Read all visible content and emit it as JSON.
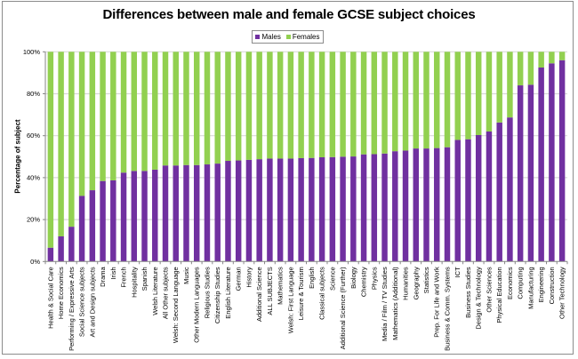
{
  "chart_data": {
    "type": "bar",
    "stacked": true,
    "percent_stacked": true,
    "title": "Differences between male and female GCSE subject choices",
    "xlabel": "",
    "ylabel": "Percentage of subject",
    "ylim": [
      0,
      100
    ],
    "yticks": [
      "0%",
      "20%",
      "40%",
      "60%",
      "80%",
      "100%"
    ],
    "ytick_values": [
      0,
      20,
      40,
      60,
      80,
      100
    ],
    "grid": true,
    "legend_position": "top-center",
    "legend": [
      {
        "name": "Males",
        "color": "#7030a0"
      },
      {
        "name": "Females",
        "color": "#92d050"
      }
    ],
    "categories": [
      "Health & Social Care",
      "Home Economics",
      "Performing / Expressive Arts",
      "Social Science subjects",
      "Art and Design subjects",
      "Drama",
      "Irish",
      "French",
      "Hospitality",
      "Spanish",
      "Welsh Literature",
      "All Other subjects",
      "Welsh: Second Language",
      "Music",
      "Other Modern Languages",
      "Religious Studies",
      "Citizenship Studies",
      "English Literature",
      "German",
      "History",
      "Additional Science",
      "ALL SUBJECTS",
      "Mathematics",
      "Welsh: First Language",
      "Leisure & Tourism",
      "English",
      "Classical subjects",
      "Science",
      "Additional Science (Further)",
      "Biology",
      "Chemistry",
      "Physics",
      "Media / Film / TV Studies",
      "Mathematics (Additional)",
      "Humanities",
      "Geography",
      "Statistics",
      "Prep. For Life and Work",
      "Business & Comm. Systems",
      "ICT",
      "Business Studies",
      "Design & Technology",
      "Other Sciences",
      "Physical Education",
      "Economics",
      "Computing",
      "Manufacturing",
      "Engineering",
      "Construction",
      "Other Technology"
    ],
    "series": [
      {
        "name": "Males",
        "color": "#7030a0",
        "values": [
          6.6,
          12.0,
          16.6,
          31.3,
          34.0,
          38.4,
          38.7,
          42.4,
          43.2,
          43.2,
          43.8,
          45.8,
          45.8,
          46.0,
          46.0,
          46.3,
          46.7,
          48.0,
          48.2,
          48.5,
          48.8,
          49.1,
          49.1,
          49.1,
          49.3,
          49.4,
          49.7,
          49.8,
          50.0,
          50.1,
          51.1,
          51.2,
          51.5,
          52.6,
          52.9,
          53.9,
          53.9,
          54.1,
          54.5,
          58.0,
          58.3,
          60.3,
          62.0,
          66.3,
          68.7,
          84.0,
          84.3,
          92.5,
          94.5,
          96.0
        ]
      },
      {
        "name": "Females",
        "color": "#92d050",
        "values": [
          93.4,
          88.0,
          83.4,
          68.7,
          66.0,
          61.6,
          61.3,
          57.6,
          56.8,
          56.8,
          56.2,
          54.2,
          54.2,
          54.0,
          54.0,
          53.7,
          53.3,
          52.0,
          51.8,
          51.5,
          51.2,
          50.9,
          50.9,
          50.9,
          50.7,
          50.6,
          50.3,
          50.2,
          50.0,
          49.9,
          48.9,
          48.8,
          48.5,
          47.4,
          47.1,
          46.1,
          46.1,
          45.9,
          45.5,
          42.0,
          41.7,
          39.7,
          38.0,
          33.7,
          31.3,
          16.0,
          15.7,
          7.5,
          5.5,
          4.0
        ]
      }
    ]
  }
}
